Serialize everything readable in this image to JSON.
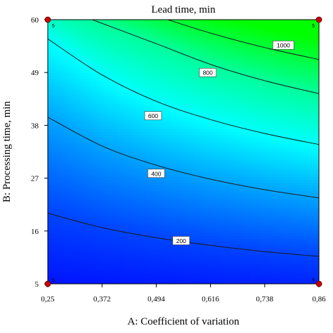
{
  "chart_data": {
    "type": "contour",
    "title": "Lead time, min",
    "xlabel": "A: Coefficient of variation",
    "ylabel": "B: Processing time, min",
    "xlim": [
      0.25,
      0.86
    ],
    "ylim": [
      5,
      60
    ],
    "x_ticks": [
      "0,25",
      "0,372",
      "0,494",
      "0,616",
      "0,738",
      "0,86"
    ],
    "y_ticks": [
      "5",
      "16",
      "27",
      "38",
      "49",
      "60"
    ],
    "x_tick_values": [
      0.25,
      0.372,
      0.494,
      0.616,
      0.738,
      0.86
    ],
    "y_tick_values": [
      5,
      16,
      27,
      38,
      49,
      60
    ],
    "color_scale": {
      "low": "#0000ff",
      "mid": "#00ffff",
      "high": "#00ff00"
    },
    "contours": [
      {
        "label": "200",
        "points": [
          [
            0.25,
            19.7
          ],
          [
            0.372,
            16.7
          ],
          [
            0.494,
            14.6
          ],
          [
            0.616,
            13.0
          ],
          [
            0.738,
            11.7
          ],
          [
            0.86,
            10.7
          ]
        ],
        "label_at": [
          0.55,
          14.0
        ]
      },
      {
        "label": "400",
        "points": [
          [
            0.25,
            39.7
          ],
          [
            0.372,
            33.7
          ],
          [
            0.494,
            29.7
          ],
          [
            0.616,
            26.8
          ],
          [
            0.738,
            24.6
          ],
          [
            0.86,
            22.9
          ]
        ],
        "label_at": [
          0.494,
          28.0
        ]
      },
      {
        "label": "600",
        "points": [
          [
            0.25,
            56.0
          ],
          [
            0.372,
            48.5
          ],
          [
            0.494,
            43.0
          ],
          [
            0.616,
            39.2
          ],
          [
            0.738,
            36.3
          ],
          [
            0.86,
            34.0
          ]
        ],
        "label_at": [
          0.487,
          40.0
        ]
      },
      {
        "label": "800",
        "points": [
          [
            0.35,
            60.0
          ],
          [
            0.494,
            55.0
          ],
          [
            0.616,
            50.7
          ],
          [
            0.738,
            47.3
          ],
          [
            0.86,
            44.6
          ]
        ],
        "label_at": [
          0.61,
          49.0
        ]
      },
      {
        "label": "1000",
        "points": [
          [
            0.52,
            60.0
          ],
          [
            0.616,
            57.2
          ],
          [
            0.738,
            54.2
          ],
          [
            0.86,
            51.7
          ]
        ],
        "label_at": [
          0.78,
          54.7
        ]
      }
    ],
    "design_points": [
      {
        "x": 0.25,
        "y": 60,
        "label": "5"
      },
      {
        "x": 0.86,
        "y": 60,
        "label": "5"
      },
      {
        "x": 0.25,
        "y": 5,
        "label": "5"
      },
      {
        "x": 0.86,
        "y": 5,
        "label": "5"
      }
    ],
    "grid": false
  }
}
